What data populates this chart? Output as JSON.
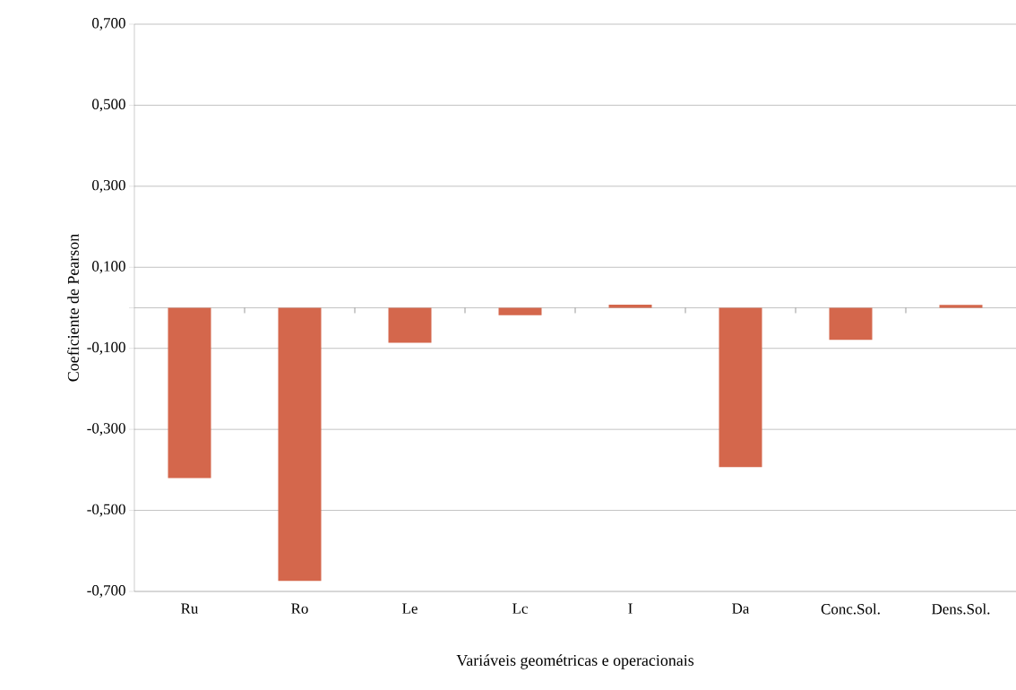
{
  "chart_data": {
    "type": "bar",
    "xlabel": "Variáveis geométricas e operacionais",
    "ylabel": "Coeficiente de Pearson",
    "categories": [
      "Ru",
      "Ro",
      "Le",
      "Lc",
      "I",
      "Da",
      "Conc.Sol.",
      "Dens.Sol."
    ],
    "values": [
      -0.42,
      -0.674,
      -0.086,
      -0.018,
      0.008,
      -0.393,
      -0.079,
      0.007
    ],
    "color": "#d4674c",
    "ylim": [
      -0.7,
      0.7
    ],
    "yticks": [
      {
        "value": 0.7,
        "label": "0,700"
      },
      {
        "value": 0.5,
        "label": "0,500"
      },
      {
        "value": 0.3,
        "label": "0,300"
      },
      {
        "value": 0.1,
        "label": "0,100"
      },
      {
        "value": -0.1,
        "label": "-0,100"
      },
      {
        "value": -0.3,
        "label": "-0,300"
      },
      {
        "value": -0.5,
        "label": "-0,500"
      },
      {
        "value": -0.7,
        "label": "-0,700"
      }
    ],
    "grid": "y"
  }
}
